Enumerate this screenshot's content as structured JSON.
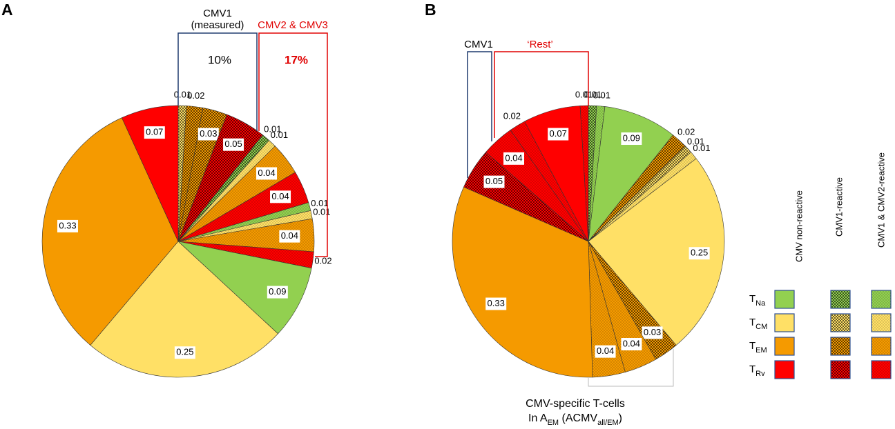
{
  "chart_data": [
    {
      "type": "pie",
      "label": "A",
      "values": [
        0.01,
        0.02,
        0.03,
        0.05,
        0.01,
        0.01,
        0.04,
        0.04,
        0.01,
        0.01,
        0.04,
        0.02,
        0.09,
        0.25,
        0.33,
        0.07
      ],
      "colors": [
        "#ffe066",
        "#f59a00",
        "#f59a00",
        "#ff0000",
        "#92d050",
        "#ffe066",
        "#f59a00",
        "#ff0000",
        "#92d050",
        "#ffe066",
        "#f59a00",
        "#ff0000",
        "#92d050",
        "#ffe066",
        "#f59a00",
        "#ff0000"
      ],
      "fills": [
        "checker",
        "checker",
        "checker",
        "checker",
        "checker",
        "dots",
        "dots",
        "dots",
        "dots",
        "dots",
        "dots",
        "dots",
        "solid",
        "solid",
        "solid",
        "solid"
      ],
      "annotations": [
        "CMV1",
        "(measured)",
        "10%",
        "CMV2 & CMV3",
        "17%"
      ]
    },
    {
      "type": "pie",
      "label": "B",
      "values": [
        0.01,
        0.01,
        0.09,
        0.02,
        0.01,
        0.01,
        0.25,
        0.03,
        0.04,
        0.04,
        0.33,
        0.05,
        0.04,
        0.02,
        0.07,
        0.01
      ],
      "colors": [
        "#92d050",
        "#92d050",
        "#92d050",
        "#f59a00",
        "#ffe066",
        "#ffe066",
        "#ffe066",
        "#f59a00",
        "#f59a00",
        "#f59a00",
        "#f59a00",
        "#ff0000",
        "#ff0000",
        "#ff0000",
        "#ff0000",
        "#ff0000"
      ],
      "fills": [
        "checker",
        "dots",
        "solid",
        "checker",
        "checker",
        "dots",
        "solid",
        "checker",
        "dots",
        "dots",
        "solid",
        "checker",
        "dots",
        "dots",
        "solid",
        "dots"
      ],
      "annotations": [
        "CMV1",
        "‘Rest’",
        "CMV-specific T-cells",
        "In A",
        "EM",
        " (ACMV",
        "all/EM",
        ")"
      ]
    }
  ],
  "legend": {
    "columns": [
      {
        "name": "CMV non-reactive",
        "fill": "solid"
      },
      {
        "name": "CMV1-reactive",
        "fill": "checker"
      },
      {
        "name": "CMV1 & CMV2-reactive",
        "fill": "dots"
      }
    ],
    "rows": [
      {
        "symbol": "T",
        "subscript": "Na",
        "color": "#92d050"
      },
      {
        "symbol": "T",
        "subscript": "CM",
        "color": "#ffe066"
      },
      {
        "symbol": "T",
        "subscript": "EM",
        "color": "#f59a00"
      },
      {
        "symbol": "T",
        "subscript": "Rv",
        "color": "#ff0000"
      }
    ]
  }
}
